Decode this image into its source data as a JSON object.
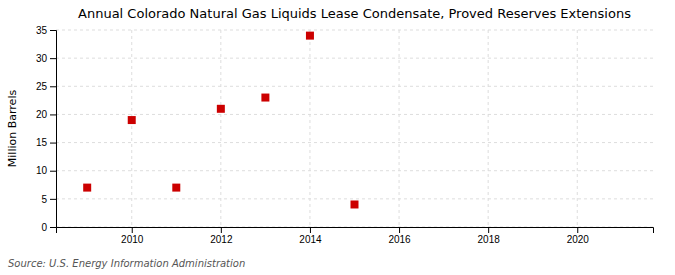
{
  "chart_data": {
    "type": "scatter",
    "title": "Annual Colorado Natural Gas Liquids Lease Condensate, Proved Reserves Extensions",
    "ylabel": "Million Barrels",
    "annotations": [
      "Source: U.S. Energy Information Administration"
    ],
    "x": [
      2009,
      2010,
      2011,
      2012,
      2013,
      2014,
      2015
    ],
    "values": [
      7.0,
      19.0,
      7.0,
      21.0,
      23.0,
      34.0,
      4.0
    ],
    "color": "#cc0000",
    "marker": "square",
    "xlim": [
      2008.3,
      2021.7
    ],
    "ylim": [
      0,
      35
    ],
    "xticks": [
      2010,
      2012,
      2014,
      2016,
      2018,
      2020
    ],
    "yticks": [
      0,
      5,
      10,
      15,
      20,
      25,
      30,
      35
    ],
    "grid": true
  }
}
